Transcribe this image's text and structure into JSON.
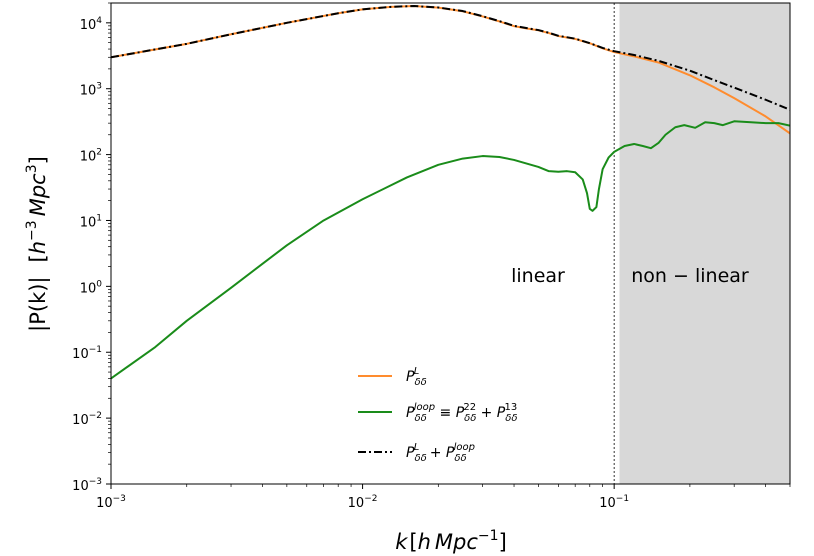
{
  "chart_data": {
    "type": "line",
    "xscale": "log",
    "yscale": "log",
    "xlim": [
      0.001,
      0.5
    ],
    "ylim": [
      0.001,
      20000
    ],
    "xlabel": "k [h Mpc^-1]",
    "xlabel_parts": {
      "k": "k",
      "open": "[",
      "h": "h",
      "mpc": "Mpc",
      "exp": "−1",
      "close": "]"
    },
    "ylabel": "|P(k)|  [h^-3 Mpc^3]",
    "ylabel_parts": {
      "main": "|P(k)|",
      "open": "[",
      "h": "h",
      "hexp": "−3",
      "mpc": "Mpc",
      "mexp": "3",
      "close": "]"
    },
    "x_ticks": [
      {
        "value": 0.001,
        "base": "10",
        "exp": "−3"
      },
      {
        "value": 0.01,
        "base": "10",
        "exp": "−2"
      },
      {
        "value": 0.1,
        "base": "10",
        "exp": "−1"
      }
    ],
    "y_ticks": [
      {
        "value": 0.001,
        "base": "10",
        "exp": "−3"
      },
      {
        "value": 0.01,
        "base": "10",
        "exp": "−2"
      },
      {
        "value": 0.1,
        "base": "10",
        "exp": "−1"
      },
      {
        "value": 1,
        "base": "10",
        "exp": "0"
      },
      {
        "value": 10,
        "base": "10",
        "exp": "1"
      },
      {
        "value": 100,
        "base": "10",
        "exp": "2"
      },
      {
        "value": 1000,
        "base": "10",
        "exp": "3"
      },
      {
        "value": 10000,
        "base": "10",
        "exp": "4"
      }
    ],
    "nonlinear_region": {
      "from": 0.105,
      "to": 0.5,
      "color": "#d8d8d8"
    },
    "divider_x": 0.1,
    "region_labels": {
      "linear": "linear",
      "nonlinear": "non − linear"
    },
    "series": [
      {
        "name": "linear",
        "legend": {
          "P": "P",
          "sub": "δδ",
          "sup": "L"
        },
        "color": "#ff8c2e",
        "style": "solid",
        "points": [
          [
            0.001,
            3000
          ],
          [
            0.002,
            4800
          ],
          [
            0.003,
            6700
          ],
          [
            0.005,
            10000
          ],
          [
            0.008,
            14000
          ],
          [
            0.01,
            16000
          ],
          [
            0.013,
            17500
          ],
          [
            0.016,
            18000
          ],
          [
            0.02,
            17000
          ],
          [
            0.025,
            15000
          ],
          [
            0.03,
            12500
          ],
          [
            0.035,
            10500
          ],
          [
            0.04,
            8900
          ],
          [
            0.045,
            8200
          ],
          [
            0.05,
            7700
          ],
          [
            0.055,
            7000
          ],
          [
            0.06,
            6300
          ],
          [
            0.07,
            5700
          ],
          [
            0.08,
            4900
          ],
          [
            0.09,
            4100
          ],
          [
            0.1,
            3600
          ],
          [
            0.12,
            3100
          ],
          [
            0.15,
            2500
          ],
          [
            0.2,
            1600
          ],
          [
            0.25,
            1050
          ],
          [
            0.3,
            720
          ],
          [
            0.4,
            380
          ],
          [
            0.5,
            210
          ]
        ]
      },
      {
        "name": "loop",
        "legend": {
          "P": "P",
          "sub": "δδ",
          "sup": "loop",
          "eq": " ≡ ",
          "P22": "P",
          "sub22": "δδ",
          "sup22": "22",
          "plus": " + ",
          "P13": "P",
          "sub13": "δδ",
          "sup13": "13"
        },
        "color": "#1a8c1a",
        "style": "solid",
        "points": [
          [
            0.001,
            0.04
          ],
          [
            0.0015,
            0.12
          ],
          [
            0.002,
            0.3
          ],
          [
            0.003,
            0.95
          ],
          [
            0.004,
            2.2
          ],
          [
            0.005,
            4.2
          ],
          [
            0.007,
            10
          ],
          [
            0.01,
            21
          ],
          [
            0.015,
            45
          ],
          [
            0.02,
            70
          ],
          [
            0.025,
            87
          ],
          [
            0.03,
            95
          ],
          [
            0.035,
            92
          ],
          [
            0.04,
            83
          ],
          [
            0.05,
            65
          ],
          [
            0.055,
            56
          ],
          [
            0.06,
            55
          ],
          [
            0.065,
            56
          ],
          [
            0.07,
            54
          ],
          [
            0.075,
            42
          ],
          [
            0.078,
            26
          ],
          [
            0.08,
            15
          ],
          [
            0.082,
            14
          ],
          [
            0.085,
            16
          ],
          [
            0.087,
            30
          ],
          [
            0.09,
            60
          ],
          [
            0.095,
            90
          ],
          [
            0.1,
            110
          ],
          [
            0.11,
            135
          ],
          [
            0.12,
            145
          ],
          [
            0.13,
            135
          ],
          [
            0.14,
            125
          ],
          [
            0.15,
            150
          ],
          [
            0.16,
            200
          ],
          [
            0.175,
            260
          ],
          [
            0.19,
            280
          ],
          [
            0.21,
            255
          ],
          [
            0.23,
            310
          ],
          [
            0.25,
            300
          ],
          [
            0.27,
            280
          ],
          [
            0.3,
            320
          ],
          [
            0.35,
            310
          ],
          [
            0.4,
            300
          ],
          [
            0.45,
            300
          ],
          [
            0.5,
            275
          ]
        ]
      },
      {
        "name": "total",
        "legend": {
          "P": "P",
          "sub": "δδ",
          "sup": "L",
          "plus": " + ",
          "P2": "P",
          "sub2": "δδ",
          "sup2": "loop"
        },
        "color": "#000000",
        "style": "dashdot",
        "points": [
          [
            0.001,
            3000
          ],
          [
            0.002,
            4800
          ],
          [
            0.003,
            6700
          ],
          [
            0.005,
            10000
          ],
          [
            0.008,
            14000
          ],
          [
            0.01,
            16000
          ],
          [
            0.013,
            17500
          ],
          [
            0.016,
            18000
          ],
          [
            0.02,
            17100
          ],
          [
            0.025,
            15100
          ],
          [
            0.03,
            12600
          ],
          [
            0.035,
            10600
          ],
          [
            0.04,
            9000
          ],
          [
            0.045,
            8300
          ],
          [
            0.05,
            7770
          ],
          [
            0.055,
            7060
          ],
          [
            0.06,
            6360
          ],
          [
            0.07,
            5750
          ],
          [
            0.08,
            4910
          ],
          [
            0.09,
            4160
          ],
          [
            0.1,
            3710
          ],
          [
            0.12,
            3250
          ],
          [
            0.15,
            2650
          ],
          [
            0.2,
            1880
          ],
          [
            0.25,
            1350
          ],
          [
            0.3,
            1040
          ],
          [
            0.4,
            680
          ],
          [
            0.5,
            480
          ]
        ]
      }
    ]
  }
}
